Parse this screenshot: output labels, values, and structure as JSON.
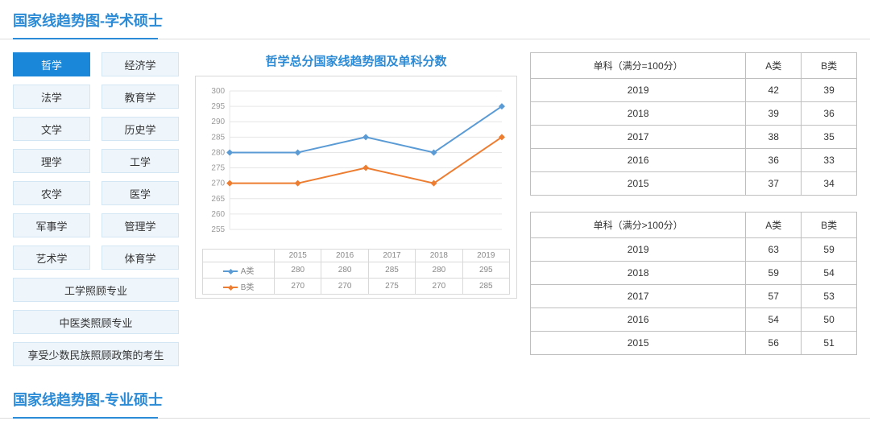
{
  "section1_title": "国家线趋势图-学术硕士",
  "section2_title": "国家线趋势图-专业硕士",
  "sidebar": {
    "tabs": [
      {
        "label": "哲学",
        "active": true
      },
      {
        "label": "经济学",
        "active": false
      },
      {
        "label": "法学",
        "active": false
      },
      {
        "label": "教育学",
        "active": false
      },
      {
        "label": "文学",
        "active": false
      },
      {
        "label": "历史学",
        "active": false
      },
      {
        "label": "理学",
        "active": false
      },
      {
        "label": "工学",
        "active": false
      },
      {
        "label": "农学",
        "active": false
      },
      {
        "label": "医学",
        "active": false
      },
      {
        "label": "军事学",
        "active": false
      },
      {
        "label": "管理学",
        "active": false
      },
      {
        "label": "艺术学",
        "active": false
      },
      {
        "label": "体育学",
        "active": false
      }
    ],
    "wide_tabs": [
      {
        "label": "工学照顾专业"
      },
      {
        "label": "中医类照顾专业"
      },
      {
        "label": "享受少数民族照顾政策的考生"
      }
    ]
  },
  "chart": {
    "title": "哲学总分国家线趋势图及单科分数",
    "type": "line",
    "years": [
      "2015",
      "2016",
      "2017",
      "2018",
      "2019"
    ],
    "series": [
      {
        "name": "A类",
        "color": "#5b9bd5",
        "values": [
          280,
          280,
          285,
          280,
          295
        ]
      },
      {
        "name": "B类",
        "color": "#ed7d31",
        "values": [
          270,
          270,
          275,
          270,
          285
        ]
      }
    ],
    "ylim": [
      255,
      300
    ],
    "ytick_step": 5,
    "background_color": "#ffffff",
    "grid_color": "#e6e6e6",
    "axis_font_color": "#999999",
    "axis_fontsize": 10
  },
  "table_eq100": {
    "header_main": "单科（满分=100分）",
    "header_a": "A类",
    "header_b": "B类",
    "rows": [
      {
        "year": "2019",
        "a": "42",
        "b": "39"
      },
      {
        "year": "2018",
        "a": "39",
        "b": "36"
      },
      {
        "year": "2017",
        "a": "38",
        "b": "35"
      },
      {
        "year": "2016",
        "a": "36",
        "b": "33"
      },
      {
        "year": "2015",
        "a": "37",
        "b": "34"
      }
    ]
  },
  "table_gt100": {
    "header_main": "单科（满分>100分）",
    "header_a": "A类",
    "header_b": "B类",
    "rows": [
      {
        "year": "2019",
        "a": "63",
        "b": "59"
      },
      {
        "year": "2018",
        "a": "59",
        "b": "54"
      },
      {
        "year": "2017",
        "a": "57",
        "b": "53"
      },
      {
        "year": "2016",
        "a": "54",
        "b": "50"
      },
      {
        "year": "2015",
        "a": "56",
        "b": "51"
      }
    ]
  }
}
